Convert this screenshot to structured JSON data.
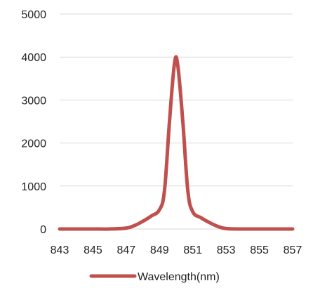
{
  "chart_data": {
    "type": "line",
    "title": "",
    "xlabel": "",
    "ylabel": "",
    "xlim": [
      843,
      857
    ],
    "ylim": [
      0,
      5000
    ],
    "x_ticks": [
      "843",
      "845",
      "847",
      "849",
      "851",
      "853",
      "855",
      "857"
    ],
    "y_ticks": [
      "0",
      "1000",
      "2000",
      "3000",
      "4000",
      "5000"
    ],
    "grid": "horizontal",
    "legend_position": "bottom",
    "series": [
      {
        "name": "Wavelength(nm)",
        "color": "#c0504d",
        "points": [
          [
            843,
            0
          ],
          [
            844,
            0
          ],
          [
            845,
            0
          ],
          [
            846,
            0
          ],
          [
            847,
            20
          ],
          [
            847.5,
            80
          ],
          [
            848,
            180
          ],
          [
            848.5,
            300
          ],
          [
            849,
            450
          ],
          [
            849.3,
            900
          ],
          [
            849.6,
            2500
          ],
          [
            849.9,
            3850
          ],
          [
            850.1,
            3800
          ],
          [
            850.4,
            2500
          ],
          [
            850.7,
            900
          ],
          [
            851,
            400
          ],
          [
            851.5,
            260
          ],
          [
            852,
            150
          ],
          [
            852.5,
            60
          ],
          [
            853,
            10
          ],
          [
            854,
            0
          ],
          [
            855,
            0
          ],
          [
            856,
            0
          ],
          [
            857,
            0
          ]
        ]
      }
    ]
  }
}
